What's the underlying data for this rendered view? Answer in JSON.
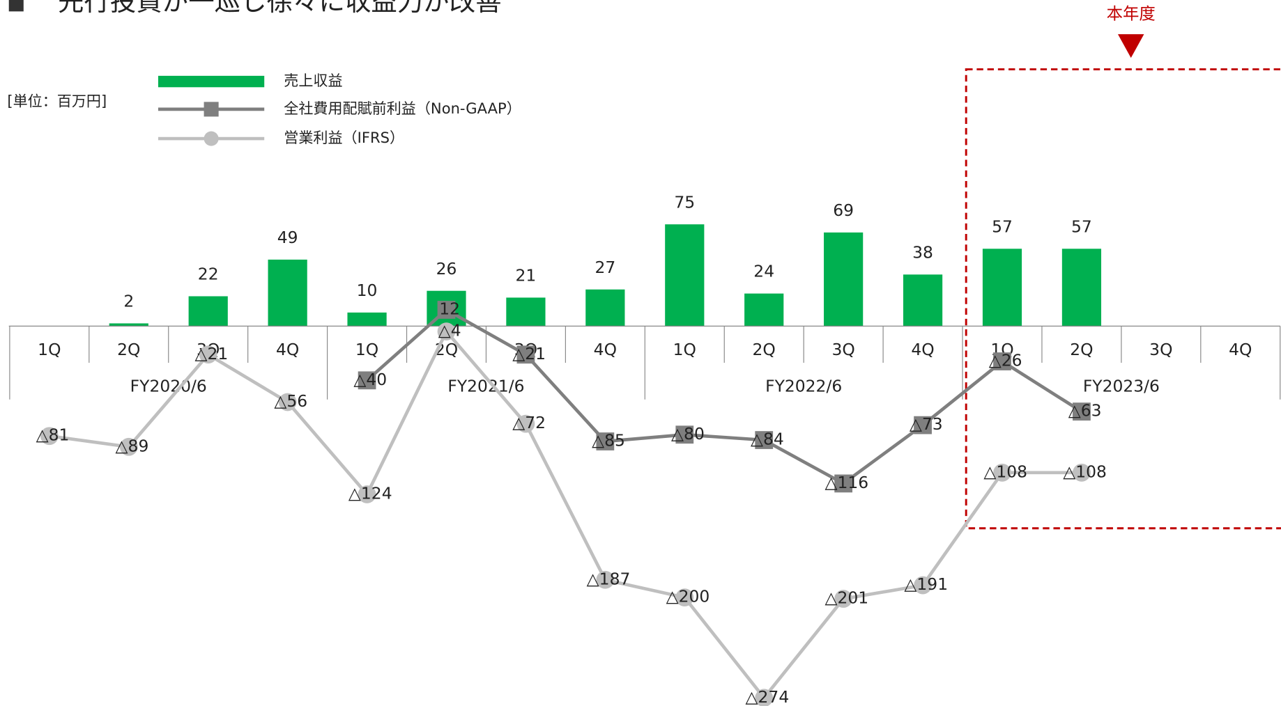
{
  "chart_data": {
    "type": "bar_line",
    "title": "先行投資が一巡し徐々に収益力が改善",
    "unit_label": "[単位：百万円]",
    "annotation": "本年度",
    "categories": [
      "1Q",
      "2Q",
      "3Q",
      "4Q",
      "1Q",
      "2Q",
      "3Q",
      "4Q",
      "1Q",
      "2Q",
      "3Q",
      "4Q",
      "1Q",
      "2Q",
      "3Q",
      "4Q"
    ],
    "groups": [
      "FY2020/6",
      "FY2021/6",
      "FY2022/6",
      "FY2023/6"
    ],
    "ylim": [
      -280,
      100
    ],
    "series": [
      {
        "name": "売上収益",
        "type": "bar",
        "color": "#00b050",
        "values": [
          null,
          2,
          22,
          49,
          10,
          26,
          21,
          27,
          75,
          24,
          69,
          38,
          57,
          57,
          null,
          null
        ]
      },
      {
        "name": "全社費用配賦前利益（Non-GAAP）",
        "type": "line",
        "marker": "square",
        "color": "#7f7f7f",
        "values": [
          null,
          null,
          null,
          null,
          -40,
          12,
          -21,
          -85,
          -80,
          -84,
          -116,
          -73,
          -26,
          -63,
          null,
          null
        ],
        "value_labels": [
          null,
          null,
          null,
          null,
          "△40",
          "12",
          "△21",
          "△85",
          "△80",
          "△84",
          "△116",
          "△73",
          "△26",
          "△63",
          null,
          null
        ]
      },
      {
        "name": "営業利益（IFRS）",
        "type": "line",
        "marker": "circle",
        "color": "#bfbfbf",
        "values": [
          -81,
          -89,
          -21,
          -56,
          -124,
          -4,
          -72,
          -187,
          -200,
          -274,
          -201,
          -191,
          -108,
          -108,
          null,
          null
        ],
        "value_labels": [
          "△81",
          "△89",
          "△21",
          "△56",
          "△124",
          "△4",
          "△72",
          "△187",
          "△200",
          "△274",
          "△201",
          "△191",
          "△108",
          "△108",
          null,
          null
        ]
      }
    ]
  }
}
